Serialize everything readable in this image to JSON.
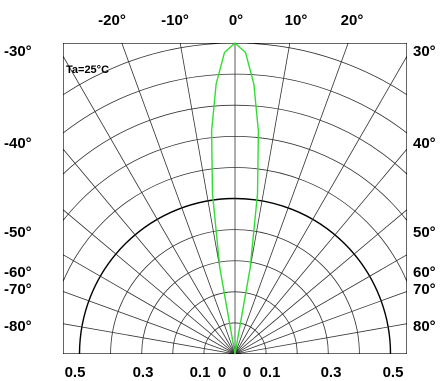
{
  "chart_data": {
    "type": "polar",
    "annotation": "Ta=25°C",
    "top_angle_labels": [
      "-20°",
      "-10°",
      "0°",
      "10°",
      "20°"
    ],
    "left_angle_labels": [
      "-30°",
      "-40°",
      "-50°",
      "-60°",
      "-70°",
      "-80°"
    ],
    "right_angle_labels": [
      "30°",
      "40°",
      "50°",
      "60°",
      "70°",
      "80°"
    ],
    "bottom_labels": [
      "0.5",
      "0.3",
      "0.1",
      "0",
      "0",
      "0.1",
      "0.3",
      "0.5"
    ],
    "radial_range": [
      0,
      1
    ],
    "ring_values": [
      0.1,
      0.2,
      0.3,
      0.4,
      0.5,
      0.6,
      0.7,
      0.8,
      0.9,
      1.0
    ],
    "reference_ring": 0.5,
    "spoke_angles": [
      -90,
      -80,
      -70,
      -60,
      -50,
      -40,
      -30,
      -20,
      -10,
      0,
      10,
      20,
      30,
      40,
      50,
      60,
      70,
      80,
      90
    ],
    "colors": {
      "grid": "#333333",
      "reference": "#000000",
      "curve": "#33dd33"
    },
    "series": [
      {
        "angles": [
          -12,
          -10,
          -8,
          -6,
          -4,
          -2,
          0,
          2,
          4,
          6,
          8,
          10,
          12
        ],
        "values": [
          0.0,
          0.28,
          0.52,
          0.72,
          0.87,
          0.97,
          1.0,
          0.97,
          0.87,
          0.72,
          0.52,
          0.28,
          0.0
        ]
      }
    ]
  }
}
